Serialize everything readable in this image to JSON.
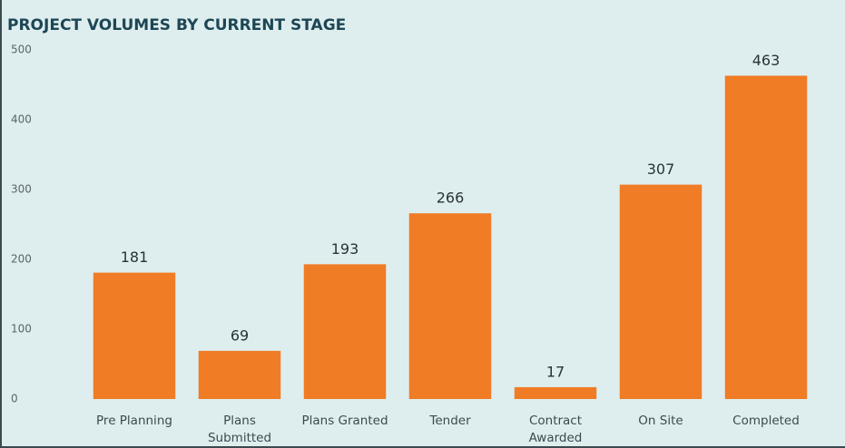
{
  "chart_data": {
    "type": "bar",
    "title": "PROJECT VOLUMES BY CURRENT STAGE",
    "categories": [
      "Pre Planning",
      "Plans Submitted",
      "Plans Granted",
      "Tender",
      "Contract Awarded",
      "On Site",
      "Completed"
    ],
    "values": [
      181,
      69,
      193,
      266,
      17,
      307,
      463
    ],
    "color": "#f07c26",
    "ylim": [
      0,
      500
    ],
    "yticks": [
      0,
      100,
      200,
      300,
      400,
      500
    ],
    "grid": false
  }
}
